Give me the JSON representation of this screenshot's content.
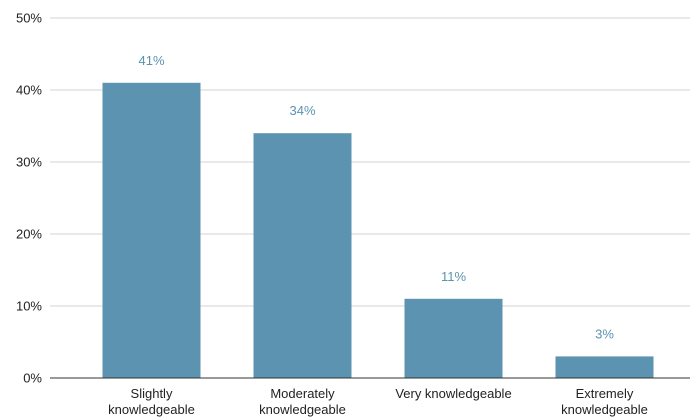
{
  "chart_data": {
    "type": "bar",
    "categories": [
      [
        "Slightly",
        "knowledgeable"
      ],
      [
        "Moderately",
        "knowledgeable"
      ],
      [
        "Very knowledgeable"
      ],
      [
        "Extremely",
        "knowledgeable"
      ]
    ],
    "values": [
      41,
      34,
      11,
      3
    ],
    "data_labels": [
      "41%",
      "34%",
      "11%",
      "3%"
    ],
    "y_ticks": [
      0,
      10,
      20,
      30,
      40,
      50
    ],
    "y_tick_labels": [
      "0%",
      "10%",
      "20%",
      "30%",
      "40%",
      "50%"
    ],
    "ylim": [
      0,
      50
    ],
    "title": "",
    "xlabel": "",
    "ylabel": "",
    "grid": true,
    "legend": "none"
  },
  "colors": {
    "bar": "#5b93b0",
    "data_label": "#5b93b0",
    "grid": "#d3d3d3",
    "axis": "#333333",
    "text": "#222222"
  }
}
